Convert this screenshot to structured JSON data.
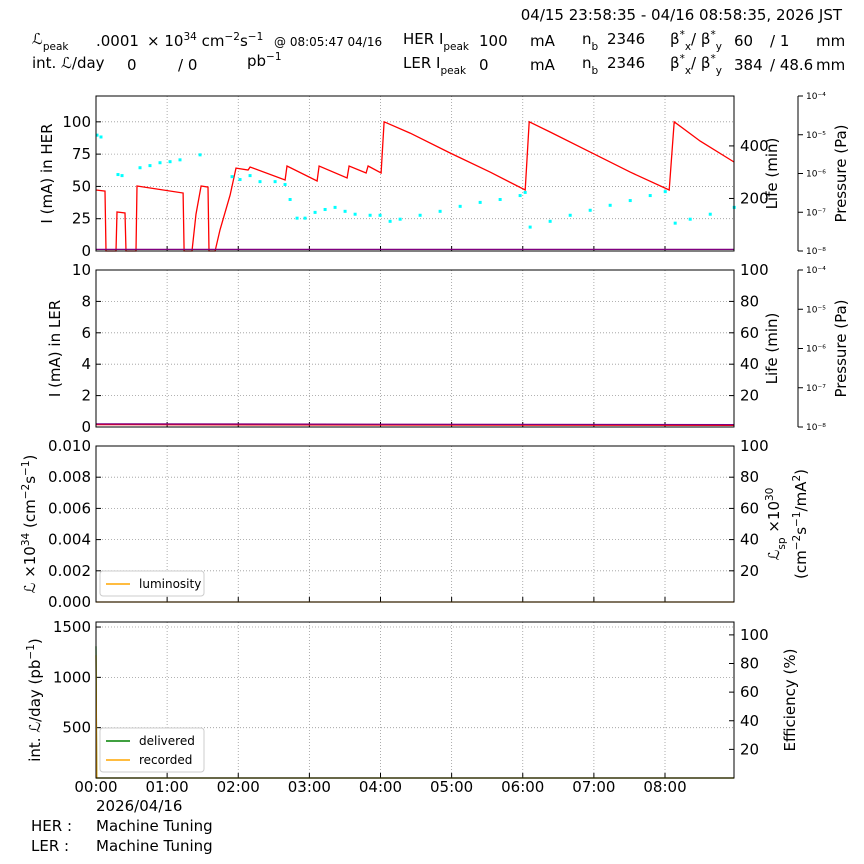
{
  "header": {
    "time_range": "04/15 23:58:35 - 04/16 08:58:35, 2026 JST",
    "lumi_peak": {
      "label": [
        "ℒ",
        {
          "sub": "peak"
        }
      ],
      "value": ".0001",
      "unit": [
        "× 10",
        {
          "sup": "34"
        },
        " cm",
        {
          "sup": "−2"
        },
        "s",
        {
          "sup": "−1"
        }
      ],
      "time": "@ 08:05:47 04/16"
    },
    "int_lumi": {
      "label": "int. ℒ/day",
      "delivered": 0,
      "recorded": "/ 0",
      "unit": [
        "pb",
        {
          "sup": "−1"
        }
      ]
    },
    "her": {
      "label": [
        "HER I",
        {
          "sub": "peak"
        }
      ],
      "current": 100,
      "unit": "mA",
      "nb_label": [
        "n",
        {
          "sub": "b"
        }
      ],
      "nb": 2346,
      "beta_label": [
        "β",
        {
          "sup": "*"
        },
        {
          "sub": "x"
        },
        "/ β",
        {
          "sup": "*"
        },
        {
          "sub": "y"
        }
      ],
      "beta_x": 60,
      "beta_y": "/ 1",
      "beta_unit": "mm"
    },
    "ler": {
      "label": [
        "LER I",
        {
          "sub": "peak"
        }
      ],
      "current": 0,
      "unit": "mA",
      "nb_label": [
        "n",
        {
          "sub": "b"
        }
      ],
      "nb": 2346,
      "beta_label": [
        "β",
        {
          "sup": "*"
        },
        {
          "sub": "x"
        },
        "/ β",
        {
          "sup": "*"
        },
        {
          "sub": "y"
        }
      ],
      "beta_x": 384,
      "beta_y": "/ 48.6",
      "beta_unit": "mm"
    }
  },
  "chart_data": [
    {
      "type": "line",
      "ylabel": "I (mA) in HER",
      "ylim": [
        0,
        120
      ],
      "yticks": [
        0,
        25,
        50,
        75,
        100
      ],
      "y2label": "Life (min)",
      "y2lim": [
        0,
        590
      ],
      "y2ticks": [
        200,
        400
      ],
      "y3label": "Pressure (Pa)",
      "y3scale": "log",
      "y3lim": [
        1e-08,
        0.0001
      ],
      "y3ticks": [
        {
          "value": 1e-08,
          "label": "10⁻⁸"
        },
        {
          "value": 1e-07,
          "label": "10⁻⁷"
        },
        {
          "value": 1e-06,
          "label": "10⁻⁶"
        },
        {
          "value": 1e-05,
          "label": "10⁻⁵"
        },
        {
          "value": 0.0001,
          "label": "10⁻⁴"
        }
      ],
      "grid": true,
      "series": [
        {
          "color": "#ff0000",
          "x": [
            0,
            0.127,
            0.141,
            0.281,
            0.295,
            0.408,
            0.422,
            0.563,
            0.577,
            1.224,
            1.238,
            1.35,
            1.406,
            1.477,
            1.575,
            1.589,
            1.674,
            1.744,
            1.885,
            1.969,
            2.138,
            2.166,
            2.658,
            2.686,
            3.108,
            3.136,
            3.53,
            3.558,
            3.797,
            3.826,
            4.008,
            4.051,
            4.416,
            4.979,
            5.541,
            6.034,
            6.09,
            6.385,
            6.948,
            7.51,
            8.059,
            8.129,
            8.495,
            8.97
          ],
          "values": [
            47.2,
            46.4,
            0,
            0,
            30.2,
            29.4,
            0,
            0,
            50.3,
            44.9,
            0,
            0,
            28.6,
            50.3,
            49.5,
            0,
            0,
            16.3,
            43.3,
            64.2,
            62.7,
            65.0,
            55.0,
            65.8,
            54.2,
            65.8,
            56.5,
            65.8,
            60.4,
            65.8,
            60.4,
            100,
            91.3,
            75.9,
            61.1,
            47.2,
            100,
            92.1,
            76.6,
            61.1,
            47.2,
            100,
            85.1,
            68.9
          ]
        },
        {
          "type": "scatter",
          "axis": "y2",
          "color": "#00ffff",
          "x": [
            0.014,
            0.07,
            0.309,
            0.366,
            0.619,
            0.759,
            0.9,
            1.041,
            1.181,
            1.463,
            1.913,
            2.025,
            2.166,
            2.306,
            2.518,
            2.658,
            2.729,
            2.827,
            2.939,
            3.08,
            3.221,
            3.361,
            3.502,
            3.643,
            3.854,
            3.994,
            4.135,
            4.276,
            4.557,
            4.838,
            5.12,
            5.401,
            5.682,
            5.963,
            6.034,
            6.104,
            6.385,
            6.667,
            6.948,
            7.229,
            7.511,
            7.792,
            8.003,
            8.143,
            8.354,
            8.636,
            8.973
          ],
          "values": [
            441,
            434,
            291,
            287,
            317,
            325,
            336,
            340,
            347,
            366,
            283,
            272,
            287,
            264,
            264,
            253,
            196,
            125,
            125,
            147,
            158,
            166,
            151,
            140,
            136,
            136,
            113,
            121,
            136,
            151,
            170,
            185,
            196,
            211,
            223,
            91,
            113,
            136,
            155,
            174,
            192,
            211,
            226,
            106,
            121,
            140,
            166
          ]
        },
        {
          "axis": "y3",
          "color": "#800080",
          "x": [
            0,
            8.97
          ],
          "values": [
            1.1e-08,
            1.1e-08
          ]
        }
      ]
    },
    {
      "type": "line",
      "ylabel": "I (mA) in LER",
      "ylim": [
        0,
        10
      ],
      "yticks": [
        0,
        2,
        4,
        6,
        8,
        10
      ],
      "y2label": "Life (min)",
      "y2lim": [
        0,
        100
      ],
      "y2ticks": [
        20,
        40,
        60,
        80,
        100
      ],
      "y3label": "Pressure (Pa)",
      "y3scale": "log",
      "y3lim": [
        1e-08,
        0.0001
      ],
      "y3ticks": [
        {
          "value": 1e-08,
          "label": "10⁻⁸"
        },
        {
          "value": 1e-07,
          "label": "10⁻⁷"
        },
        {
          "value": 1e-06,
          "label": "10⁻⁶"
        },
        {
          "value": 1e-05,
          "label": "10⁻⁵"
        },
        {
          "value": 0.0001,
          "label": "10⁻⁴"
        }
      ],
      "grid": true,
      "series": [
        {
          "color": "#ff0000",
          "x": [
            0,
            8.97
          ],
          "values": [
            0.15,
            0.1
          ]
        },
        {
          "axis": "y3",
          "color": "#800080",
          "x": [
            0,
            8.97
          ],
          "values": [
            1.2e-08,
            1.15e-08
          ]
        }
      ]
    },
    {
      "type": "line",
      "ylabel": [
        "ℒ ×10",
        {
          "sup": "34"
        },
        " (cm",
        {
          "sup": "−2"
        },
        "s",
        {
          "sup": "−1"
        },
        ")"
      ],
      "ylim": [
        0,
        0.01
      ],
      "yticks": [
        {
          "value": 0,
          "label": "0.000"
        },
        {
          "value": 0.002,
          "label": "0.002"
        },
        {
          "value": 0.004,
          "label": "0.004"
        },
        {
          "value": 0.006,
          "label": "0.006"
        },
        {
          "value": 0.008,
          "label": "0.008"
        },
        {
          "value": 0.01,
          "label": "0.010"
        }
      ],
      "y2label": [
        [
          "ℒ",
          {
            "sub": "sp"
          },
          " ×10",
          {
            "sup": "30"
          }
        ],
        [
          "(cm",
          {
            "sup": "−2"
          },
          "s",
          {
            "sup": "−1"
          },
          "/mA",
          {
            "sup": "2"
          },
          ")"
        ]
      ],
      "y2lim": [
        0,
        100
      ],
      "y2ticks": [
        20,
        40,
        60,
        80,
        100
      ],
      "grid": true,
      "legend": "lower left",
      "series": [
        {
          "name": "luminosity",
          "color": "#ffa500",
          "x": [
            0,
            8.97
          ],
          "values": [
            0,
            0
          ]
        }
      ]
    },
    {
      "type": "line",
      "ylabel": [
        "int. ℒ/day (pb",
        {
          "sup": "−1"
        },
        ")"
      ],
      "ylim": [
        0,
        1550
      ],
      "yticks": [
        500,
        1000,
        1500
      ],
      "y2label": "Efficiency (%)",
      "y2lim": [
        0,
        109
      ],
      "y2ticks": [
        20,
        40,
        60,
        80,
        100
      ],
      "grid": true,
      "legend": "lower left",
      "xlim": [
        0,
        8.97
      ],
      "xticks": [
        {
          "value": 0,
          "label": "00:00"
        },
        {
          "value": 1,
          "label": "01:00"
        },
        {
          "value": 2,
          "label": "02:00"
        },
        {
          "value": 3,
          "label": "03:00"
        },
        {
          "value": 4,
          "label": "04:00"
        },
        {
          "value": 5,
          "label": "05:00"
        },
        {
          "value": 6,
          "label": "06:00"
        },
        {
          "value": 7,
          "label": "07:00"
        },
        {
          "value": 8,
          "label": "08:00"
        }
      ],
      "x_date": "2026/04/16",
      "series": [
        {
          "name": "delivered",
          "color": "#008000",
          "x": [
            0,
            0.01,
            8.97
          ],
          "values": [
            1310,
            0,
            0
          ]
        },
        {
          "name": "recorded",
          "color": "#ffa500",
          "x": [
            0,
            0.01,
            8.97
          ],
          "values": [
            1220,
            0,
            0
          ]
        }
      ]
    }
  ],
  "status": [
    {
      "ring": "HER :",
      "state": "Machine Tuning"
    },
    {
      "ring": "LER :",
      "state": "Machine Tuning"
    }
  ]
}
